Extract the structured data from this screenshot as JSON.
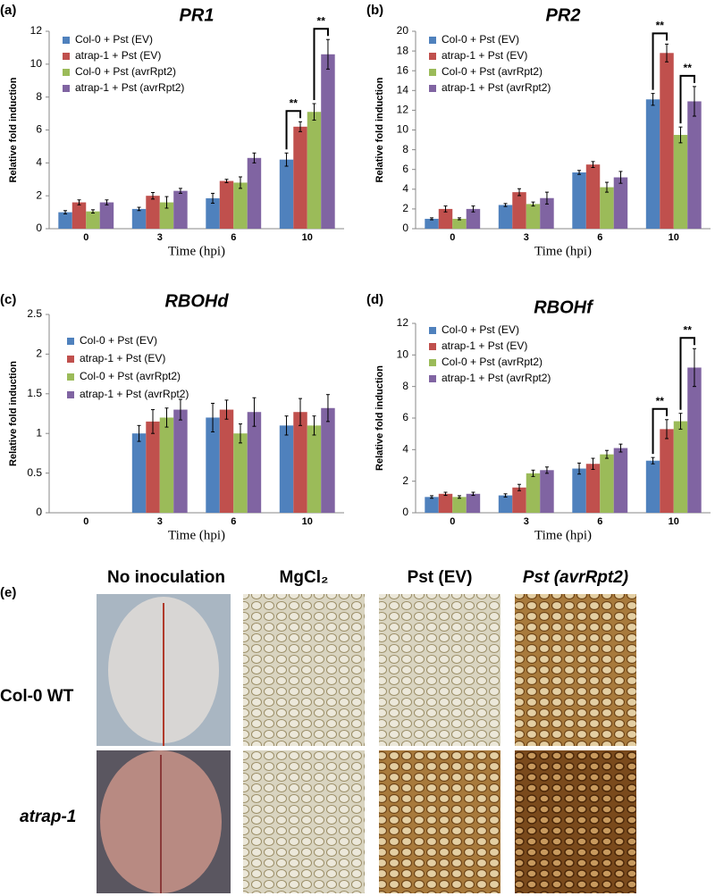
{
  "chart_data": [
    {
      "type": "bar",
      "label": "(a)",
      "title": "PR1",
      "x_label": "Time (hpi)",
      "y_label": "Relative fold induction",
      "categories": [
        "0",
        "3",
        "6",
        "10"
      ],
      "ylim": [
        0,
        12
      ],
      "yticks": [
        0,
        2,
        4,
        6,
        8,
        10,
        12
      ],
      "legend": "upper left",
      "series": [
        {
          "name": "Col-0 + Pst (EV)",
          "color": "#4f81bd",
          "values": [
            1.0,
            1.2,
            1.85,
            4.2
          ],
          "errors": [
            0.1,
            0.1,
            0.3,
            0.4
          ]
        },
        {
          "name": "atrap-1 + Pst (EV)",
          "color": "#c0504d",
          "values": [
            1.6,
            2.0,
            2.9,
            6.2
          ],
          "errors": [
            0.15,
            0.2,
            0.1,
            0.3
          ]
        },
        {
          "name": "Col-0 + Pst (avrRpt2)",
          "color": "#9bbb59",
          "values": [
            1.05,
            1.6,
            2.8,
            7.1
          ],
          "errors": [
            0.1,
            0.35,
            0.35,
            0.5
          ]
        },
        {
          "name": "atrap-1 + Pst (avrRpt2)",
          "color": "#8064a2",
          "values": [
            1.6,
            2.3,
            4.3,
            10.6
          ],
          "errors": [
            0.15,
            0.15,
            0.3,
            0.9
          ]
        }
      ],
      "annotations": [
        {
          "text": "**",
          "category": 3,
          "series": [
            0,
            1
          ]
        },
        {
          "text": "**",
          "category": 3,
          "series": [
            2,
            3
          ]
        }
      ]
    },
    {
      "type": "bar",
      "label": "(b)",
      "title": "PR2",
      "x_label": "Time (hpi)",
      "y_label": "Relative fold induction",
      "categories": [
        "0",
        "3",
        "6",
        "10"
      ],
      "ylim": [
        0,
        20
      ],
      "yticks": [
        0,
        2,
        4,
        6,
        8,
        10,
        12,
        14,
        16,
        18,
        20
      ],
      "legend": "upper left",
      "series": [
        {
          "name": "Col-0 + Pst (EV)",
          "color": "#4f81bd",
          "values": [
            1.0,
            2.4,
            5.7,
            13.1
          ],
          "errors": [
            0.1,
            0.15,
            0.2,
            0.6
          ]
        },
        {
          "name": "atrap-1 + Pst (EV)",
          "color": "#c0504d",
          "values": [
            2.0,
            3.7,
            6.5,
            17.8
          ],
          "errors": [
            0.3,
            0.35,
            0.3,
            0.9
          ]
        },
        {
          "name": "Col-0 + Pst (avrRpt2)",
          "color": "#9bbb59",
          "values": [
            1.0,
            2.5,
            4.2,
            9.5
          ],
          "errors": [
            0.1,
            0.2,
            0.5,
            0.8
          ]
        },
        {
          "name": "atrap-1 + Pst (avrRpt2)",
          "color": "#8064a2",
          "values": [
            2.0,
            3.1,
            5.2,
            12.9
          ],
          "errors": [
            0.3,
            0.6,
            0.6,
            1.5
          ]
        }
      ],
      "annotations": [
        {
          "text": "**",
          "category": 3,
          "series": [
            0,
            1
          ]
        },
        {
          "text": "**",
          "category": 3,
          "series": [
            2,
            3
          ]
        }
      ]
    },
    {
      "type": "bar",
      "label": "(c)",
      "title": "RBOHd",
      "x_label": "Time (hpi)",
      "y_label": "Relative fold induction",
      "categories": [
        "0",
        "3",
        "6",
        "10"
      ],
      "ylim": [
        0,
        2.5
      ],
      "yticks": [
        0,
        0.5,
        1,
        1.5,
        2,
        2.5
      ],
      "legend": "upper left",
      "series": [
        {
          "name": "Col-0 + Pst (EV)",
          "color": "#4f81bd",
          "values": [
            null,
            1.0,
            1.2,
            1.1
          ],
          "errors": [
            null,
            0.1,
            0.18,
            0.12
          ]
        },
        {
          "name": "atrap-1 + Pst (EV)",
          "color": "#c0504d",
          "values": [
            null,
            1.15,
            1.3,
            1.27
          ],
          "errors": [
            null,
            0.15,
            0.12,
            0.17
          ]
        },
        {
          "name": "Col-0 + Pst (avrRpt2)",
          "color": "#9bbb59",
          "values": [
            null,
            1.2,
            1.0,
            1.1
          ],
          "errors": [
            null,
            0.12,
            0.12,
            0.12
          ]
        },
        {
          "name": "atrap-1 + Pst (avrRpt2)",
          "color": "#8064a2",
          "values": [
            null,
            1.3,
            1.27,
            1.32
          ],
          "errors": [
            null,
            0.13,
            0.18,
            0.17
          ]
        }
      ],
      "annotations": []
    },
    {
      "type": "bar",
      "label": "(d)",
      "title": "RBOHf",
      "x_label": "Time (hpi)",
      "y_label": "Relative fold induction",
      "categories": [
        "0",
        "3",
        "6",
        "10"
      ],
      "ylim": [
        0,
        12
      ],
      "yticks": [
        0,
        2,
        4,
        6,
        8,
        10,
        12
      ],
      "legend": "upper left",
      "series": [
        {
          "name": "Col-0 + Pst (EV)",
          "color": "#4f81bd",
          "values": [
            1.0,
            1.1,
            2.8,
            3.3
          ],
          "errors": [
            0.08,
            0.1,
            0.35,
            0.2
          ]
        },
        {
          "name": "atrap-1 + Pst (EV)",
          "color": "#c0504d",
          "values": [
            1.2,
            1.6,
            3.1,
            5.3
          ],
          "errors": [
            0.1,
            0.2,
            0.35,
            0.6
          ]
        },
        {
          "name": "Col-0 + Pst (avrRpt2)",
          "color": "#9bbb59",
          "values": [
            1.0,
            2.5,
            3.7,
            5.8
          ],
          "errors": [
            0.08,
            0.2,
            0.25,
            0.5
          ]
        },
        {
          "name": "atrap-1 + Pst (avrRpt2)",
          "color": "#8064a2",
          "values": [
            1.2,
            2.7,
            4.1,
            9.2
          ],
          "errors": [
            0.1,
            0.2,
            0.25,
            1.2
          ]
        }
      ],
      "annotations": [
        {
          "text": "**",
          "category": 3,
          "series": [
            0,
            1
          ]
        },
        {
          "text": "**",
          "category": 3,
          "series": [
            2,
            3
          ]
        }
      ]
    }
  ],
  "panel_e": {
    "label": "(e)",
    "columns": [
      "No inoculation",
      "MgCl₂",
      "Pst (EV)",
      "Pst (avrRpt2)"
    ],
    "rows": [
      "Col-0 WT",
      "atrap-1"
    ]
  }
}
